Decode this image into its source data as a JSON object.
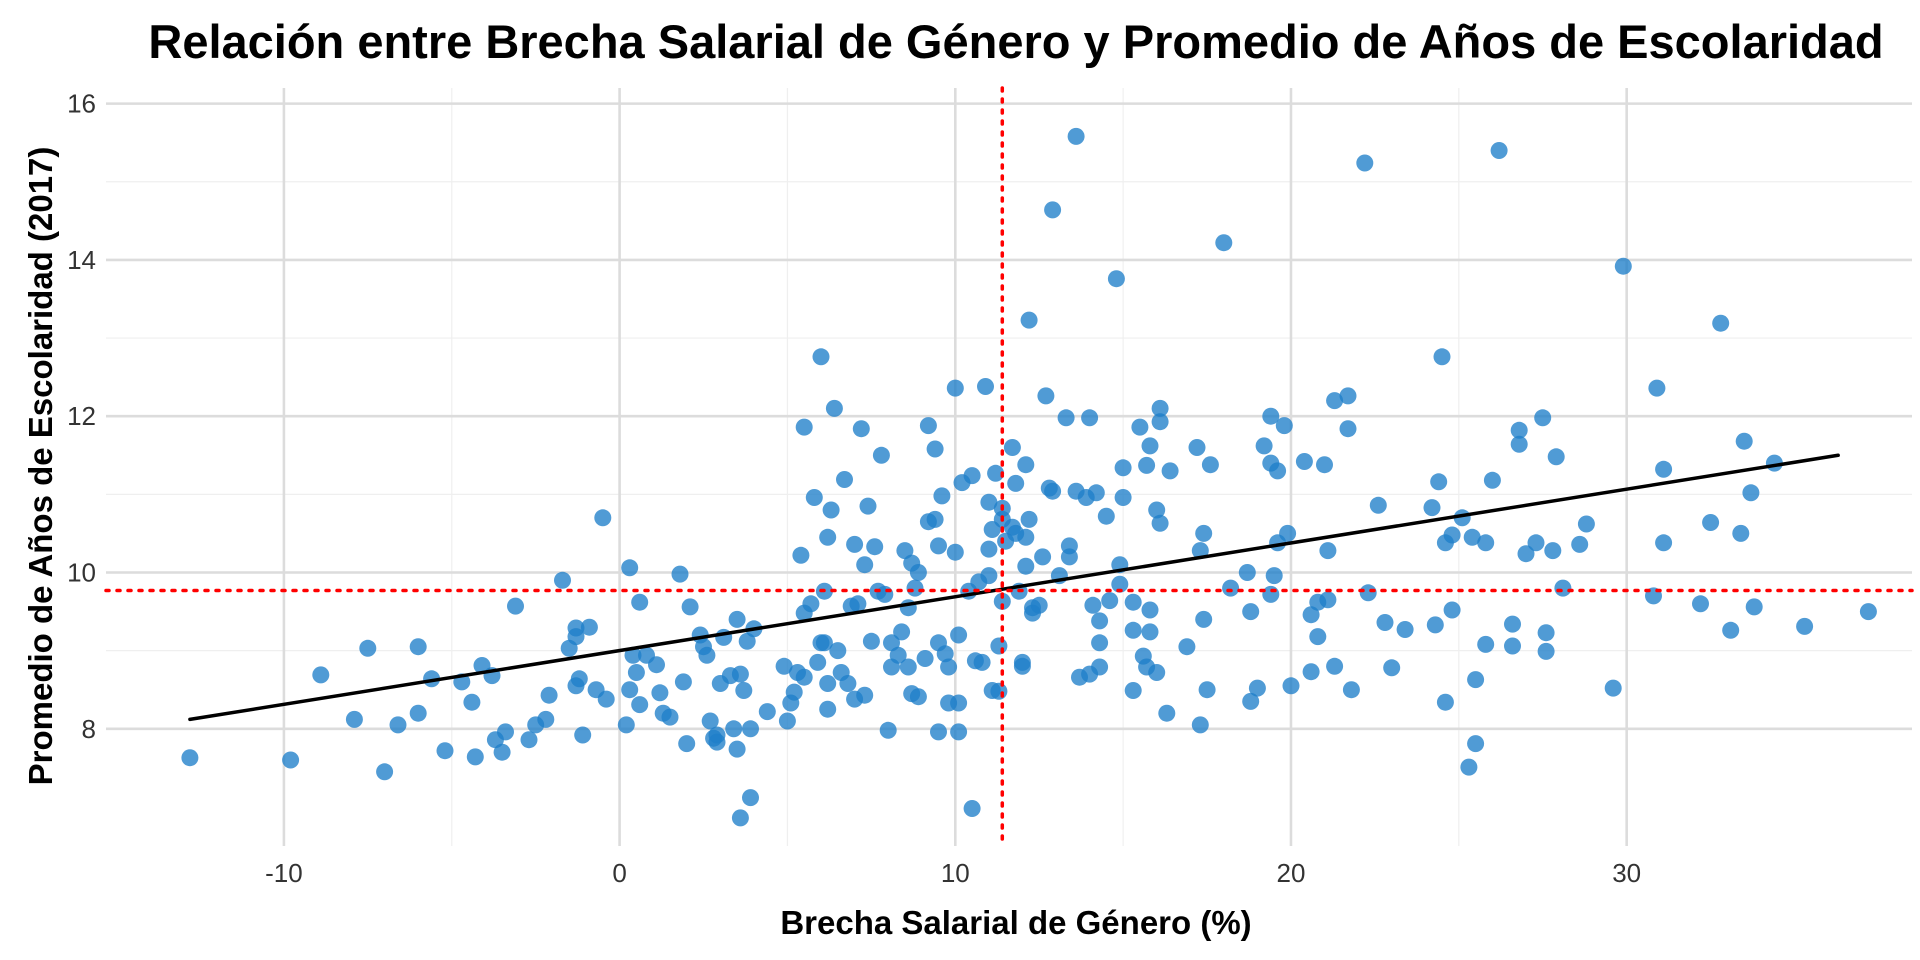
{
  "chart_data": {
    "type": "scatter",
    "title": "Relación entre Brecha Salarial de Género y Promedio de Años de Escolaridad",
    "xlabel": "Brecha Salarial de Género (%)",
    "ylabel": "Promedio de Años de Escolaridad (2017)",
    "xlim": [
      -15.3,
      38.5
    ],
    "ylim": [
      6.5,
      16.2
    ],
    "x_ticks": [
      -10,
      0,
      10,
      20,
      30
    ],
    "y_ticks": [
      8,
      10,
      12,
      14,
      16
    ],
    "x_tick_labels": [
      "-10",
      "0",
      "10",
      "20",
      "30"
    ],
    "y_tick_labels": [
      "8",
      "10",
      "12",
      "14",
      "16"
    ],
    "grid": true,
    "legend": "none",
    "point_color": "#1f7fc9",
    "trend_line_color": "#000000",
    "reference_line_color": "#ff0000",
    "vline_x": 11.4,
    "hline_y": 9.77,
    "trend_line": {
      "x": [
        -12.8,
        36.3
      ],
      "y": [
        8.12,
        11.5
      ]
    },
    "points": [
      [
        -12.8,
        7.63
      ],
      [
        -9.8,
        7.6
      ],
      [
        -8.9,
        8.69
      ],
      [
        -7.9,
        8.12
      ],
      [
        -7.5,
        9.03
      ],
      [
        -7.0,
        7.45
      ],
      [
        -6.6,
        8.05
      ],
      [
        -6.0,
        9.05
      ],
      [
        -6.0,
        8.2
      ],
      [
        -5.6,
        8.64
      ],
      [
        -5.2,
        7.72
      ],
      [
        -4.7,
        8.6
      ],
      [
        -4.4,
        8.34
      ],
      [
        -4.3,
        7.64
      ],
      [
        -4.1,
        8.81
      ],
      [
        -3.8,
        8.68
      ],
      [
        -3.7,
        7.86
      ],
      [
        -3.5,
        7.7
      ],
      [
        -3.4,
        7.96
      ],
      [
        -3.1,
        9.57
      ],
      [
        -2.7,
        7.86
      ],
      [
        -2.5,
        8.05
      ],
      [
        -2.2,
        8.12
      ],
      [
        -2.1,
        8.43
      ],
      [
        -1.7,
        9.9
      ],
      [
        -1.5,
        9.03
      ],
      [
        -1.3,
        9.29
      ],
      [
        -1.3,
        9.18
      ],
      [
        -1.3,
        8.55
      ],
      [
        -1.2,
        8.64
      ],
      [
        -1.1,
        7.92
      ],
      [
        -0.9,
        9.3
      ],
      [
        -0.7,
        8.5
      ],
      [
        -0.5,
        10.7
      ],
      [
        -0.4,
        8.38
      ],
      [
        0.2,
        8.05
      ],
      [
        0.3,
        8.5
      ],
      [
        0.3,
        10.06
      ],
      [
        0.4,
        8.94
      ],
      [
        0.5,
        8.72
      ],
      [
        0.6,
        8.31
      ],
      [
        0.6,
        9.62
      ],
      [
        0.8,
        8.94
      ],
      [
        1.1,
        8.82
      ],
      [
        1.2,
        8.46
      ],
      [
        1.3,
        8.2
      ],
      [
        1.5,
        8.15
      ],
      [
        1.8,
        9.98
      ],
      [
        1.9,
        8.6
      ],
      [
        2.0,
        7.81
      ],
      [
        2.1,
        9.56
      ],
      [
        2.4,
        9.2
      ],
      [
        2.5,
        9.05
      ],
      [
        2.6,
        8.94
      ],
      [
        2.7,
        8.1
      ],
      [
        2.8,
        7.88
      ],
      [
        2.9,
        7.92
      ],
      [
        2.9,
        7.83
      ],
      [
        3.0,
        8.58
      ],
      [
        3.1,
        9.17
      ],
      [
        3.3,
        8.68
      ],
      [
        3.4,
        8.0
      ],
      [
        3.5,
        9.4
      ],
      [
        3.5,
        7.74
      ],
      [
        3.6,
        8.7
      ],
      [
        3.6,
        6.86
      ],
      [
        3.7,
        8.49
      ],
      [
        3.8,
        9.12
      ],
      [
        3.9,
        7.12
      ],
      [
        3.9,
        8.0
      ],
      [
        4.0,
        9.28
      ],
      [
        4.4,
        8.22
      ],
      [
        4.9,
        8.8
      ],
      [
        5.0,
        8.1
      ],
      [
        5.1,
        8.33
      ],
      [
        5.2,
        8.47
      ],
      [
        5.3,
        8.72
      ],
      [
        5.4,
        10.22
      ],
      [
        5.5,
        9.48
      ],
      [
        5.5,
        8.66
      ],
      [
        5.5,
        11.86
      ],
      [
        5.7,
        9.6
      ],
      [
        5.8,
        10.96
      ],
      [
        5.9,
        8.85
      ],
      [
        6.0,
        12.76
      ],
      [
        6.0,
        9.1
      ],
      [
        6.1,
        9.76
      ],
      [
        6.1,
        9.1
      ],
      [
        6.2,
        8.25
      ],
      [
        6.2,
        8.58
      ],
      [
        6.2,
        10.45
      ],
      [
        6.3,
        10.8
      ],
      [
        6.4,
        12.1
      ],
      [
        6.5,
        9.0
      ],
      [
        6.6,
        8.72
      ],
      [
        6.7,
        11.19
      ],
      [
        6.8,
        8.58
      ],
      [
        6.9,
        9.57
      ],
      [
        7.0,
        10.36
      ],
      [
        7.0,
        8.38
      ],
      [
        7.1,
        9.6
      ],
      [
        7.2,
        11.84
      ],
      [
        7.3,
        10.1
      ],
      [
        7.3,
        8.43
      ],
      [
        7.4,
        10.85
      ],
      [
        7.5,
        9.12
      ],
      [
        7.6,
        10.33
      ],
      [
        7.7,
        9.76
      ],
      [
        7.8,
        11.5
      ],
      [
        7.9,
        9.72
      ],
      [
        8.0,
        7.98
      ],
      [
        8.1,
        9.1
      ],
      [
        8.1,
        8.79
      ],
      [
        8.3,
        8.94
      ],
      [
        8.4,
        9.24
      ],
      [
        8.5,
        10.28
      ],
      [
        8.6,
        9.55
      ],
      [
        8.6,
        8.79
      ],
      [
        8.7,
        10.12
      ],
      [
        8.7,
        8.45
      ],
      [
        8.8,
        9.8
      ],
      [
        8.9,
        10.0
      ],
      [
        8.9,
        8.41
      ],
      [
        9.1,
        8.9
      ],
      [
        9.2,
        11.88
      ],
      [
        9.2,
        10.65
      ],
      [
        9.4,
        10.68
      ],
      [
        9.4,
        11.58
      ],
      [
        9.5,
        10.34
      ],
      [
        9.5,
        9.1
      ],
      [
        9.5,
        7.96
      ],
      [
        9.6,
        10.98
      ],
      [
        9.7,
        8.96
      ],
      [
        9.8,
        8.79
      ],
      [
        9.8,
        8.33
      ],
      [
        10.0,
        10.26
      ],
      [
        10.0,
        12.36
      ],
      [
        10.1,
        9.2
      ],
      [
        10.1,
        8.33
      ],
      [
        10.1,
        7.96
      ],
      [
        10.2,
        11.15
      ],
      [
        10.4,
        9.76
      ],
      [
        10.5,
        6.98
      ],
      [
        10.5,
        11.24
      ],
      [
        10.6,
        8.87
      ],
      [
        10.7,
        9.88
      ],
      [
        10.8,
        8.85
      ],
      [
        10.9,
        12.38
      ],
      [
        11.0,
        9.96
      ],
      [
        11.0,
        10.3
      ],
      [
        11.0,
        10.9
      ],
      [
        11.1,
        10.55
      ],
      [
        11.1,
        8.49
      ],
      [
        11.2,
        11.27
      ],
      [
        11.3,
        9.06
      ],
      [
        11.3,
        8.48
      ],
      [
        11.4,
        10.82
      ],
      [
        11.4,
        10.68
      ],
      [
        11.4,
        9.63
      ],
      [
        11.5,
        10.4
      ],
      [
        11.7,
        11.6
      ],
      [
        11.7,
        10.58
      ],
      [
        11.8,
        10.5
      ],
      [
        11.8,
        11.14
      ],
      [
        11.9,
        9.76
      ],
      [
        12.0,
        8.85
      ],
      [
        12.0,
        8.8
      ],
      [
        12.1,
        10.45
      ],
      [
        12.1,
        11.38
      ],
      [
        12.1,
        10.08
      ],
      [
        12.2,
        13.23
      ],
      [
        12.2,
        10.68
      ],
      [
        12.3,
        9.55
      ],
      [
        12.3,
        9.48
      ],
      [
        12.5,
        9.58
      ],
      [
        12.6,
        10.2
      ],
      [
        12.7,
        12.26
      ],
      [
        12.8,
        11.08
      ],
      [
        12.9,
        14.64
      ],
      [
        12.9,
        11.04
      ],
      [
        13.1,
        9.96
      ],
      [
        13.3,
        11.98
      ],
      [
        13.4,
        10.34
      ],
      [
        13.4,
        10.2
      ],
      [
        13.6,
        15.58
      ],
      [
        13.6,
        11.04
      ],
      [
        13.7,
        8.66
      ],
      [
        13.9,
        10.96
      ],
      [
        14.0,
        11.98
      ],
      [
        14.0,
        8.7
      ],
      [
        14.1,
        9.58
      ],
      [
        14.2,
        11.02
      ],
      [
        14.3,
        9.38
      ],
      [
        14.3,
        9.1
      ],
      [
        14.3,
        8.79
      ],
      [
        14.5,
        10.72
      ],
      [
        14.6,
        9.64
      ],
      [
        14.8,
        13.76
      ],
      [
        14.9,
        9.85
      ],
      [
        14.9,
        10.1
      ],
      [
        15.0,
        11.34
      ],
      [
        15.0,
        10.96
      ],
      [
        15.3,
        8.49
      ],
      [
        15.3,
        9.26
      ],
      [
        15.3,
        9.62
      ],
      [
        15.5,
        11.86
      ],
      [
        15.6,
        8.93
      ],
      [
        15.7,
        8.79
      ],
      [
        15.7,
        11.37
      ],
      [
        15.8,
        9.24
      ],
      [
        15.8,
        11.62
      ],
      [
        15.8,
        9.52
      ],
      [
        16.0,
        10.8
      ],
      [
        16.0,
        8.72
      ],
      [
        16.1,
        10.63
      ],
      [
        16.1,
        12.1
      ],
      [
        16.1,
        11.93
      ],
      [
        16.3,
        8.2
      ],
      [
        16.4,
        11.3
      ],
      [
        16.9,
        9.05
      ],
      [
        17.2,
        11.6
      ],
      [
        17.3,
        8.05
      ],
      [
        17.3,
        10.28
      ],
      [
        17.4,
        9.4
      ],
      [
        17.4,
        10.5
      ],
      [
        17.5,
        8.5
      ],
      [
        17.6,
        11.38
      ],
      [
        18.0,
        14.22
      ],
      [
        18.2,
        9.8
      ],
      [
        18.7,
        10.0
      ],
      [
        18.8,
        9.5
      ],
      [
        18.8,
        8.35
      ],
      [
        19.0,
        8.52
      ],
      [
        19.2,
        11.62
      ],
      [
        19.4,
        12.0
      ],
      [
        19.4,
        11.4
      ],
      [
        19.4,
        9.72
      ],
      [
        19.5,
        9.96
      ],
      [
        19.6,
        10.38
      ],
      [
        19.6,
        11.3
      ],
      [
        19.8,
        11.88
      ],
      [
        19.9,
        10.5
      ],
      [
        20.0,
        8.55
      ],
      [
        20.4,
        11.42
      ],
      [
        20.6,
        9.46
      ],
      [
        20.6,
        8.73
      ],
      [
        20.8,
        9.62
      ],
      [
        20.8,
        9.18
      ],
      [
        21.0,
        11.38
      ],
      [
        21.1,
        10.28
      ],
      [
        21.1,
        9.65
      ],
      [
        21.3,
        8.8
      ],
      [
        21.3,
        12.2
      ],
      [
        21.7,
        12.26
      ],
      [
        21.7,
        11.84
      ],
      [
        21.8,
        8.5
      ],
      [
        22.2,
        15.24
      ],
      [
        22.3,
        9.74
      ],
      [
        22.6,
        10.86
      ],
      [
        22.8,
        9.36
      ],
      [
        23.0,
        8.78
      ],
      [
        23.4,
        9.27
      ],
      [
        24.2,
        10.83
      ],
      [
        24.3,
        9.33
      ],
      [
        24.4,
        11.16
      ],
      [
        24.5,
        12.76
      ],
      [
        24.6,
        10.38
      ],
      [
        24.6,
        8.34
      ],
      [
        24.8,
        10.48
      ],
      [
        24.8,
        9.52
      ],
      [
        25.1,
        10.7
      ],
      [
        25.3,
        7.51
      ],
      [
        25.4,
        10.45
      ],
      [
        25.5,
        7.81
      ],
      [
        25.5,
        8.63
      ],
      [
        25.8,
        10.38
      ],
      [
        25.8,
        9.08
      ],
      [
        26.0,
        11.18
      ],
      [
        26.2,
        15.4
      ],
      [
        26.6,
        9.06
      ],
      [
        26.6,
        9.34
      ],
      [
        26.8,
        11.82
      ],
      [
        26.8,
        11.64
      ],
      [
        27.3,
        10.38
      ],
      [
        27.5,
        11.98
      ],
      [
        27.6,
        9.23
      ],
      [
        27.6,
        8.99
      ],
      [
        27.8,
        10.28
      ],
      [
        27.9,
        11.48
      ],
      [
        28.1,
        9.8
      ],
      [
        28.6,
        10.36
      ],
      [
        28.8,
        10.62
      ],
      [
        29.6,
        8.52
      ],
      [
        29.9,
        13.92
      ],
      [
        30.8,
        9.7
      ],
      [
        30.9,
        12.36
      ],
      [
        31.1,
        11.32
      ],
      [
        31.1,
        10.38
      ],
      [
        32.2,
        9.6
      ],
      [
        32.5,
        10.64
      ],
      [
        32.8,
        13.19
      ],
      [
        33.1,
        9.26
      ],
      [
        33.4,
        10.5
      ],
      [
        33.5,
        11.68
      ],
      [
        33.7,
        11.02
      ],
      [
        33.8,
        9.56
      ],
      [
        34.4,
        11.4
      ],
      [
        35.3,
        9.31
      ],
      [
        37.2,
        9.5
      ],
      [
        27.0,
        10.24
      ]
    ]
  }
}
